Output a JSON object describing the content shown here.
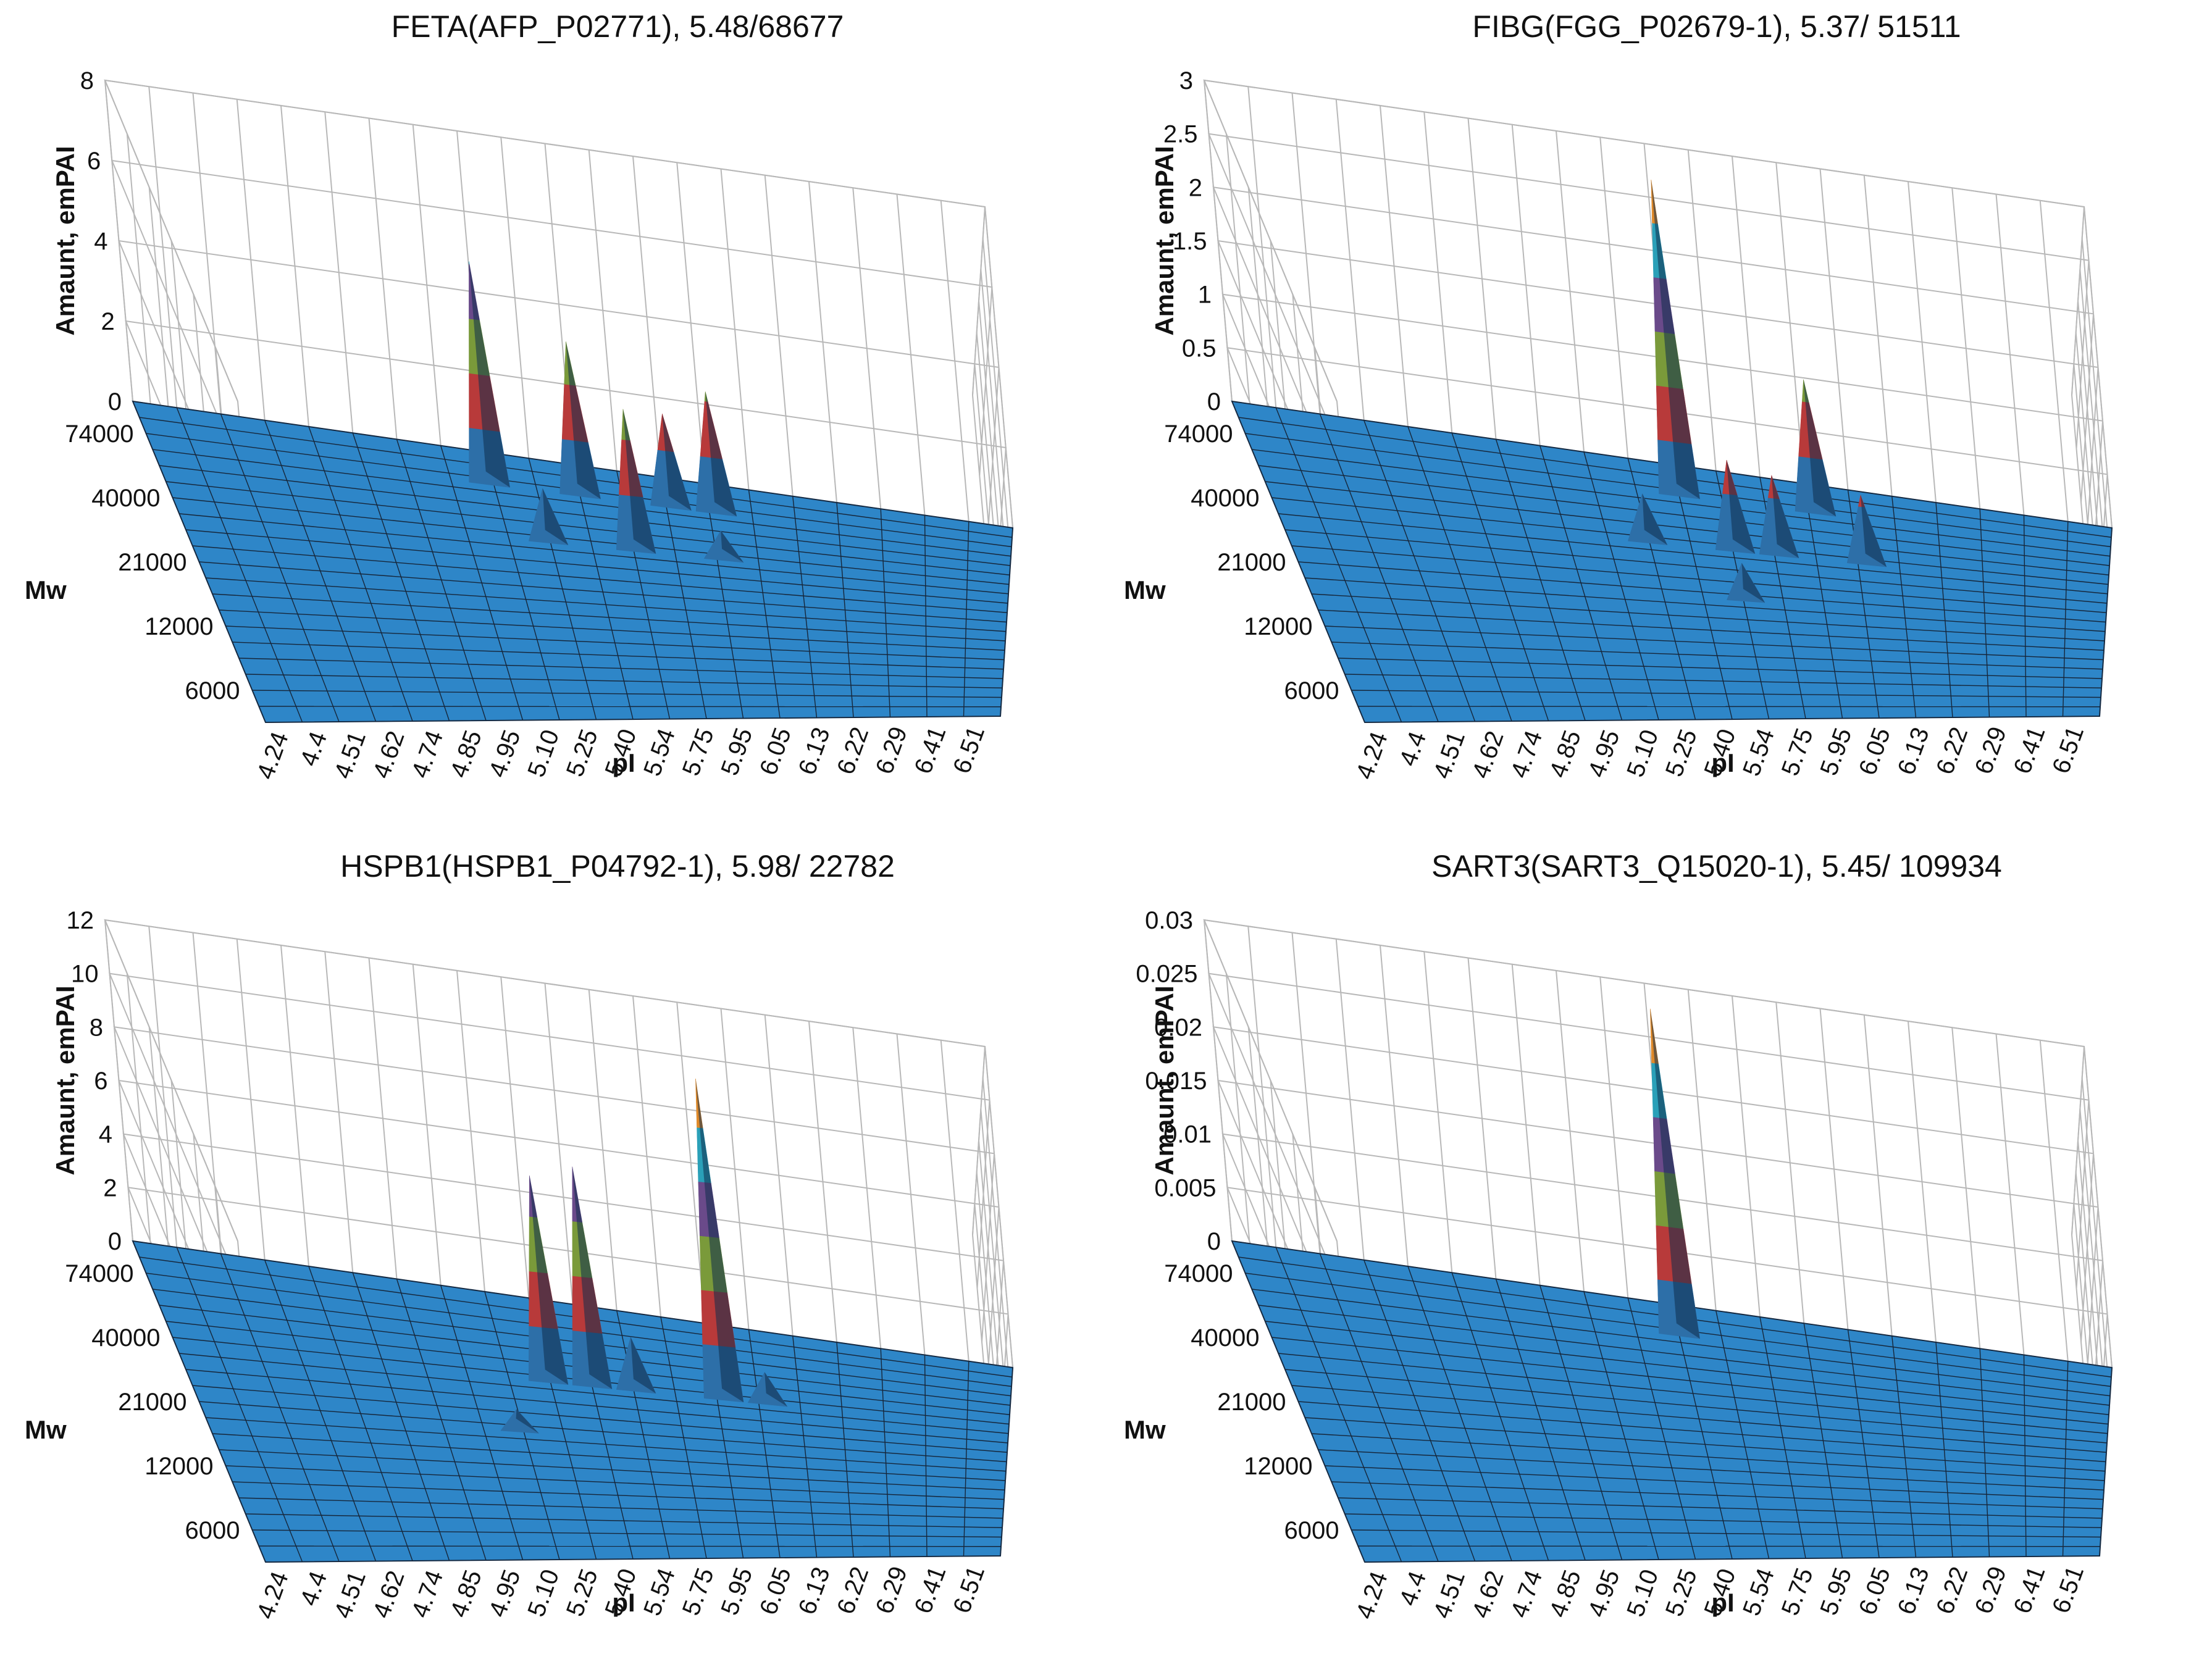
{
  "figure": {
    "x_axis_label": "pI",
    "y_axis_label": "Mw",
    "z_axis_label": "Amaunt, emPAI",
    "pi_ticks": [
      "4.24",
      "4.4",
      "4.51",
      "4.62",
      "4.74",
      "4.85",
      "4.95",
      "5.10",
      "5.25",
      "5.40",
      "5.54",
      "5.75",
      "5.95",
      "6.05",
      "6.13",
      "6.22",
      "6.29",
      "6.41",
      "6.51"
    ],
    "mw_ticks": [
      "6000",
      "12000",
      "21000",
      "40000",
      "74000"
    ],
    "band_colors": [
      "#2d6fa8",
      "#b83a3a",
      "#7a9a3a",
      "#6a4a8a",
      "#2aa0b8",
      "#e08a2a"
    ],
    "surface_color": "#2e86c8"
  },
  "chart_data": [
    {
      "type": "surface3d",
      "title": "FETA(AFP_P02771), 5.48/68677",
      "xlabel": "pI",
      "ylabel": "Mw",
      "zlabel": "Amaunt, emPAI",
      "zlim": [
        0,
        8
      ],
      "z_ticks": [
        "8",
        "6",
        "4",
        "2",
        "0"
      ],
      "peaks": [
        {
          "pi": "5.10",
          "mw": "74000",
          "value": 5.4
        },
        {
          "pi": "5.40",
          "mw": "74000",
          "value": 3.7
        },
        {
          "pi": "5.75",
          "mw": "74000",
          "value": 2.2
        },
        {
          "pi": "5.95",
          "mw": "74000",
          "value": 2.9
        },
        {
          "pi": "5.54",
          "mw": "40000",
          "value": 3.4
        },
        {
          "pi": "5.25",
          "mw": "40000",
          "value": 1.2
        },
        {
          "pi": "5.95",
          "mw": "40000",
          "value": 0.6
        }
      ]
    },
    {
      "type": "surface3d",
      "title": "FIBG(FGG_P02679-1), 5.37/ 51511",
      "xlabel": "pI",
      "ylabel": "Mw",
      "zlabel": "Amaunt, emPAI",
      "zlim": [
        0,
        3
      ],
      "z_ticks": [
        "3",
        "2.5",
        "2",
        "1.5",
        "1",
        "0.5",
        "0"
      ],
      "peaks": [
        {
          "pi": "5.40",
          "mw": "74000",
          "value": 2.9
        },
        {
          "pi": "5.95",
          "mw": "74000",
          "value": 1.2
        },
        {
          "pi": "5.54",
          "mw": "40000",
          "value": 0.8
        },
        {
          "pi": "5.75",
          "mw": "40000",
          "value": 0.7
        },
        {
          "pi": "6.05",
          "mw": "40000",
          "value": 0.6
        },
        {
          "pi": "5.25",
          "mw": "40000",
          "value": 0.4
        },
        {
          "pi": "5.54",
          "mw": "21000",
          "value": 0.3
        }
      ]
    },
    {
      "type": "surface3d",
      "title": "HSPB1(HSPB1_P04792-1), 5.98/ 22782",
      "xlabel": "pI",
      "ylabel": "Mw",
      "zlabel": "Amaunt, emPAI",
      "zlim": [
        0,
        12
      ],
      "z_ticks": [
        "12",
        "10",
        "8",
        "6",
        "4",
        "2",
        "0"
      ],
      "peaks": [
        {
          "pi": "5.95",
          "mw": "40000",
          "value": 11.8
        },
        {
          "pi": "5.40",
          "mw": "40000",
          "value": 8.0
        },
        {
          "pi": "5.25",
          "mw": "40000",
          "value": 7.5
        },
        {
          "pi": "5.54",
          "mw": "40000",
          "value": 1.8
        },
        {
          "pi": "6.05",
          "mw": "40000",
          "value": 1.0
        },
        {
          "pi": "5.10",
          "mw": "21000",
          "value": 0.6
        }
      ]
    },
    {
      "type": "surface3d",
      "title": "SART3(SART3_Q15020-1), 5.45/ 109934",
      "xlabel": "pI",
      "ylabel": "Mw",
      "zlabel": "Amaunt, emPAI",
      "zlim": [
        0,
        0.03
      ],
      "z_ticks": [
        "0.03",
        "0.025",
        "0.02",
        "0.015",
        "0.01",
        "0.005",
        "0"
      ],
      "peaks": [
        {
          "pi": "5.40",
          "mw": "74000",
          "value": 0.03
        }
      ]
    }
  ]
}
